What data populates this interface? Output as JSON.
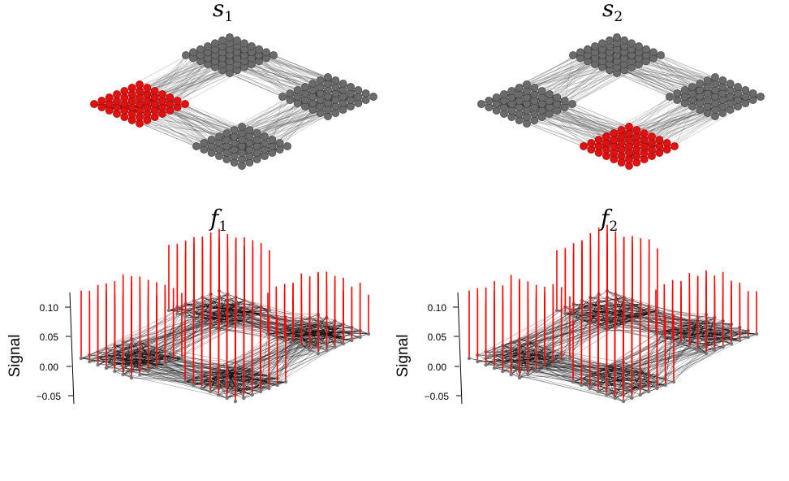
{
  "panels": [
    {
      "title_main": "s",
      "title_sub": "1",
      "highlight_cluster": "left"
    },
    {
      "title_main": "s",
      "title_sub": "2",
      "highlight_cluster": "bottom"
    },
    {
      "title_main": "f",
      "title_sub": "1",
      "kind": "signal"
    },
    {
      "title_main": "f",
      "title_sub": "2",
      "kind": "signal"
    }
  ],
  "signal_axis": {
    "label": "Signal",
    "ticks": [
      "0.10",
      "0.05",
      "0.00",
      "−0.05"
    ]
  },
  "colors": {
    "node": "#6b6b6b",
    "node_dark": "#3a3a3a",
    "highlight": "#e31010",
    "edge": "#555555",
    "stem": "#ff0000"
  }
}
